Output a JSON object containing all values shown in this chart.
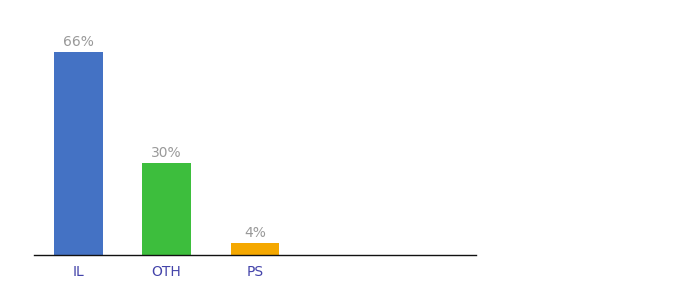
{
  "categories": [
    "IL",
    "OTH",
    "PS"
  ],
  "values": [
    66,
    30,
    4
  ],
  "labels": [
    "66%",
    "30%",
    "4%"
  ],
  "bar_colors": [
    "#4472c4",
    "#3dbe3d",
    "#f5a800"
  ],
  "background_color": "#ffffff",
  "ylim": [
    0,
    75
  ],
  "label_fontsize": 10,
  "tick_fontsize": 10,
  "label_color": "#999999",
  "tick_color": "#4444aa"
}
